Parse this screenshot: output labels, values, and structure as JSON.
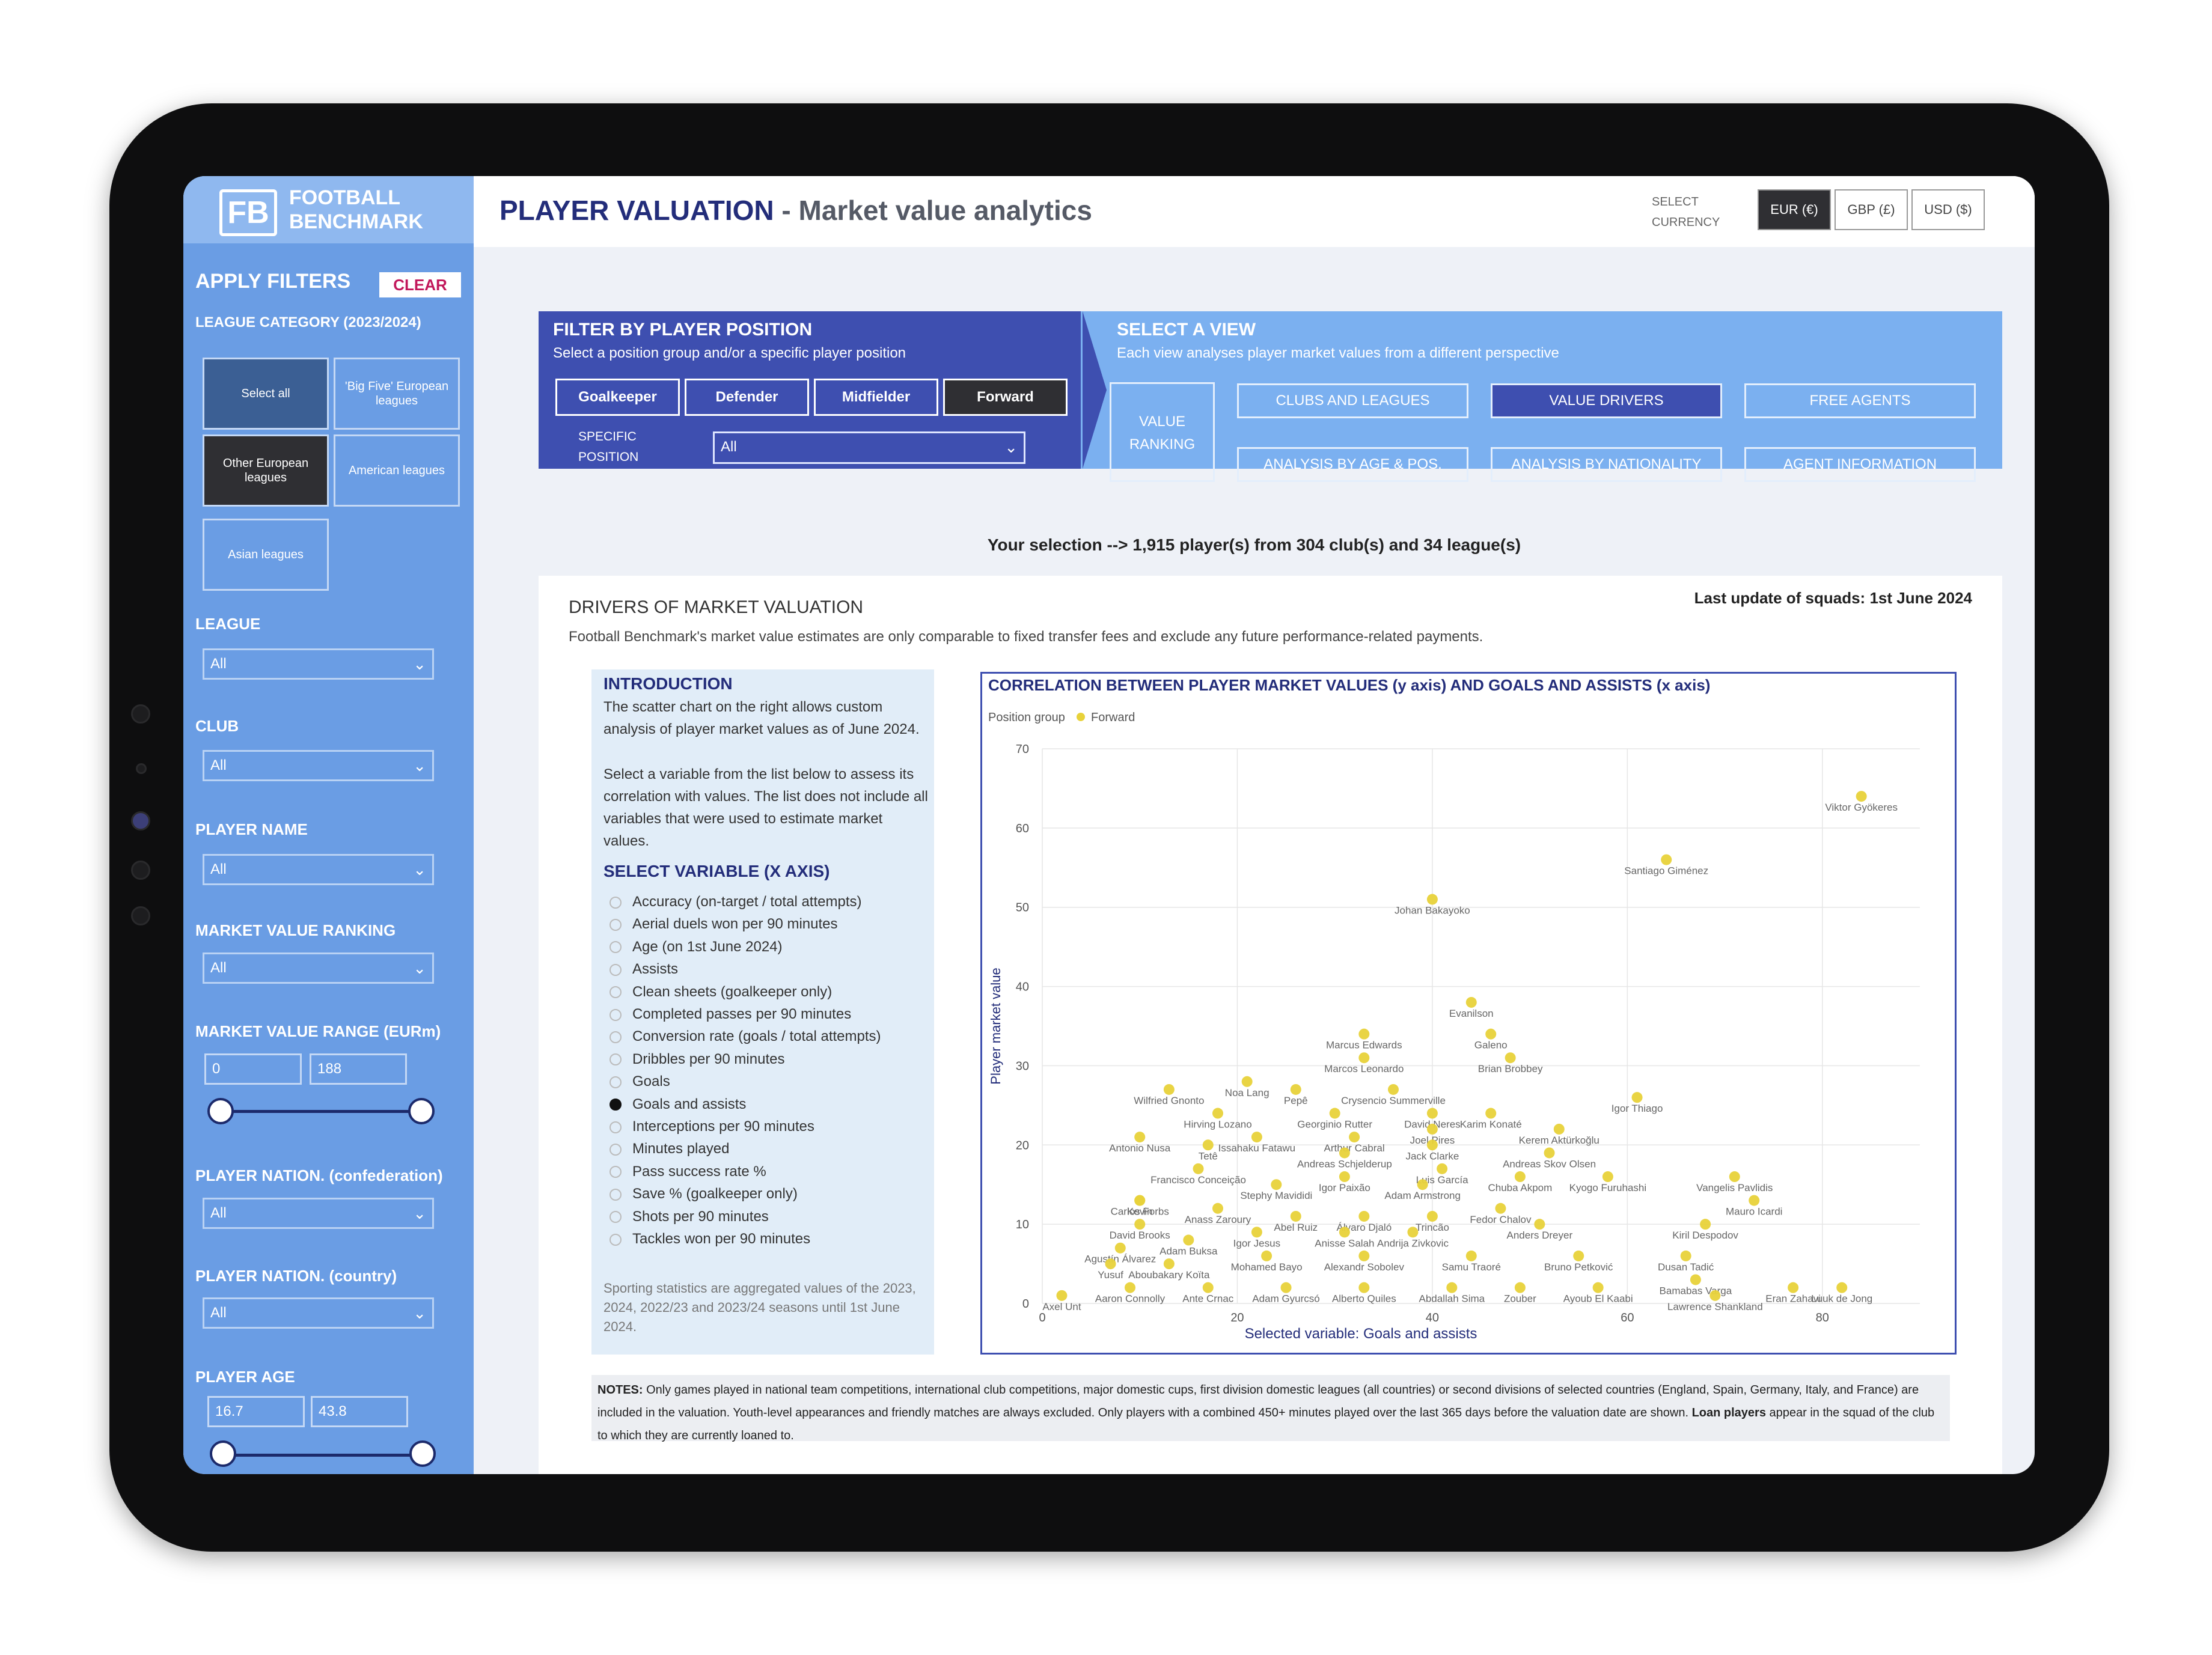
{
  "brand": {
    "line1": "FOOTBALL",
    "line2": "BENCHMARK",
    "mark": "FB"
  },
  "header": {
    "title_main": "PLAYER VALUATION",
    "title_sep": " - ",
    "title_sub": "Market value analytics",
    "currency_label_1": "SELECT",
    "currency_label_2": "CURRENCY",
    "currencies": [
      "EUR (€)",
      "GBP (£)",
      "USD ($)"
    ],
    "active_currency": "EUR (€)"
  },
  "sidebar": {
    "apply_filters": "APPLY FILTERS",
    "clear": "CLEAR",
    "league_category_label": "LEAGUE CATEGORY (2023/2024)",
    "league_categories": [
      "Select all",
      "'Big Five' European leagues",
      "Other European leagues",
      "American leagues",
      "Asian leagues"
    ],
    "league_label": "LEAGUE",
    "league_value": "All",
    "club_label": "CLUB",
    "club_value": "All",
    "player_name_label": "PLAYER NAME",
    "player_name_value": "All",
    "ranking_label": "MARKET VALUE RANKING",
    "ranking_value": "All",
    "range_label": "MARKET VALUE RANGE (EURm)",
    "range_min": "0",
    "range_max": "188",
    "confed_label": "PLAYER NATION. (confederation)",
    "confed_value": "All",
    "country_label": "PLAYER NATION. (country)",
    "country_value": "All",
    "age_label": "PLAYER AGE",
    "age_min": "16.7",
    "age_max": "43.8"
  },
  "filter_panel": {
    "title": "FILTER BY PLAYER POSITION",
    "subtitle": "Select a position group and/or a specific player position",
    "positions": [
      "Goalkeeper",
      "Defender",
      "Midfielder",
      "Forward"
    ],
    "active_position": "Forward",
    "specific_label_1": "SPECIFIC",
    "specific_label_2": "POSITION",
    "specific_value": "All"
  },
  "view_panel": {
    "title": "SELECT A VIEW",
    "subtitle": "Each view analyses player market values from a different perspective",
    "ranking_btn_1": "VALUE",
    "ranking_btn_2": "RANKING",
    "views": [
      "CLUBS AND LEAGUES",
      "VALUE DRIVERS",
      "FREE AGENTS",
      "ANALYSIS BY AGE & POS.",
      "ANALYSIS BY NATIONALITY",
      "AGENT INFORMATION"
    ],
    "active_view": "VALUE DRIVERS"
  },
  "selection_text": "Your selection --> 1,915 player(s) from 304 club(s) and 34 league(s)",
  "content": {
    "section_title": "DRIVERS OF MARKET VALUATION",
    "last_update": "Last update of squads: 1st June 2024",
    "disclaimer": "Football Benchmark's market value estimates are only comparable to fixed transfer fees and exclude any future performance-related payments.",
    "intro_title": "INTRODUCTION",
    "intro_p1": "The scatter chart on the right allows custom analysis of player market values as of June 2024.",
    "intro_p2": "Select a variable from the list below to assess its correlation with values. The list does not include all variables that were used to estimate market values.",
    "select_var_title": "SELECT VARIABLE (X AXIS)",
    "variables": [
      "Accuracy (on-target / total attempts)",
      "Aerial duels won per 90 minutes",
      "Age (on 1st June 2024)",
      "Assists",
      "Clean sheets (goalkeeper only)",
      "Completed passes per 90 minutes",
      "Conversion rate (goals / total attempts)",
      "Dribbles per 90 minutes",
      "Goals",
      "Goals and assists",
      "Interceptions per 90 minutes",
      "Minutes played",
      "Pass success rate %",
      "Save % (goalkeeper only)",
      "Shots per 90 minutes",
      "Tackles won per 90 minutes"
    ],
    "selected_variable": "Goals and assists",
    "footnote": "Sporting statistics are aggregated values of the 2023, 2024, 2022/23 and 2023/24 seasons until 1st June 2024.",
    "notes_label": "NOTES:",
    "notes_text": "Only games played in national team competitions, international club competitions, major domestic cups, first division domestic leagues (all countries) or second divisions of selected countries (England, Spain, Germany, Italy, and France) are included in the valuation. Youth-level appearances and friendly matches are always excluded. Only players with a combined 450+ minutes played over the last 365 days before the valuation date are shown.",
    "loan_label": "Loan players",
    "loan_text": "appear in the squad of the club to which they are currently loaned to."
  },
  "chart_data": {
    "type": "scatter",
    "title": "CORRELATION BETWEEN PLAYER MARKET VALUES (y axis) AND GOALS AND ASSISTS (x axis)",
    "legend_title": "Position group",
    "series_name": "Forward",
    "color": "#e8d23a",
    "xlabel": "Selected variable: Goals and assists",
    "ylabel": "Player market value",
    "xlim": [
      0,
      90
    ],
    "ylim": [
      0,
      70
    ],
    "xticks": [
      0,
      20,
      40,
      60,
      80
    ],
    "yticks": [
      0,
      10,
      20,
      30,
      40,
      50,
      60,
      70
    ],
    "labeled_points": [
      {
        "x": 84,
        "y": 64,
        "label": "Viktor Gyökeres"
      },
      {
        "x": 64,
        "y": 56,
        "label": "Santiago Giménez"
      },
      {
        "x": 40,
        "y": 51,
        "label": "Johan Bakayoko"
      },
      {
        "x": 44,
        "y": 38,
        "label": "Evanilson"
      },
      {
        "x": 46,
        "y": 34,
        "label": "Galeno"
      },
      {
        "x": 33,
        "y": 34,
        "label": "Marcus Edwards"
      },
      {
        "x": 33,
        "y": 31,
        "label": "Marcos Leonardo"
      },
      {
        "x": 48,
        "y": 31,
        "label": "Brian Brobbey"
      },
      {
        "x": 21,
        "y": 28,
        "label": "Noa Lang"
      },
      {
        "x": 13,
        "y": 27,
        "label": "Wilfried Gnonto"
      },
      {
        "x": 26,
        "y": 27,
        "label": "Pepê"
      },
      {
        "x": 36,
        "y": 27,
        "label": "Crysencio Summerville"
      },
      {
        "x": 61,
        "y": 26,
        "label": "Igor Thiago"
      },
      {
        "x": 18,
        "y": 24,
        "label": "Hirving Lozano"
      },
      {
        "x": 30,
        "y": 24,
        "label": "Georginio Rutter"
      },
      {
        "x": 40,
        "y": 24,
        "label": "David Neres"
      },
      {
        "x": 46,
        "y": 24,
        "label": "Karim Konaté"
      },
      {
        "x": 10,
        "y": 21,
        "label": "Antonio Nusa"
      },
      {
        "x": 22,
        "y": 21,
        "label": "Issahaku Fatawu"
      },
      {
        "x": 32,
        "y": 21,
        "label": "Arthur Cabral"
      },
      {
        "x": 40,
        "y": 22,
        "label": "Joel Pires"
      },
      {
        "x": 53,
        "y": 22,
        "label": "Kerem Aktürkoğlu"
      },
      {
        "x": 17,
        "y": 20,
        "label": "Tetê"
      },
      {
        "x": 40,
        "y": 20,
        "label": "Jack Clarke"
      },
      {
        "x": 52,
        "y": 19,
        "label": "Andreas Skov Olsen"
      },
      {
        "x": 31,
        "y": 19,
        "label": "Andreas Schjelderup"
      },
      {
        "x": 16,
        "y": 17,
        "label": "Francisco Conceição"
      },
      {
        "x": 41,
        "y": 17,
        "label": "Luis García"
      },
      {
        "x": 31,
        "y": 16,
        "label": "Igor Paixão"
      },
      {
        "x": 24,
        "y": 15,
        "label": "Stephy Mavididi"
      },
      {
        "x": 39,
        "y": 15,
        "label": "Adam Armstrong"
      },
      {
        "x": 49,
        "y": 16,
        "label": "Chuba Akpom"
      },
      {
        "x": 58,
        "y": 16,
        "label": "Kyogo Furuhashi"
      },
      {
        "x": 71,
        "y": 16,
        "label": "Vangelis Pavlidis"
      },
      {
        "x": 73,
        "y": 13,
        "label": "Mauro Icardi"
      },
      {
        "x": 10,
        "y": 13,
        "label": "Kevin"
      },
      {
        "x": 10,
        "y": 13,
        "label": "Carlos Forbs"
      },
      {
        "x": 18,
        "y": 12,
        "label": "Anass Zaroury"
      },
      {
        "x": 26,
        "y": 11,
        "label": "Abel Ruiz"
      },
      {
        "x": 33,
        "y": 11,
        "label": "Álvaro Djaló"
      },
      {
        "x": 40,
        "y": 11,
        "label": "Trincão"
      },
      {
        "x": 47,
        "y": 12,
        "label": "Fedor Chalov"
      },
      {
        "x": 10,
        "y": 10,
        "label": "David Brooks"
      },
      {
        "x": 22,
        "y": 9,
        "label": "Igor Jesus"
      },
      {
        "x": 38,
        "y": 9,
        "label": "Andrija Zivkovic"
      },
      {
        "x": 31,
        "y": 9,
        "label": "Anisse Salah"
      },
      {
        "x": 51,
        "y": 10,
        "label": "Anders Dreyer"
      },
      {
        "x": 68,
        "y": 10,
        "label": "Kiril Despodov"
      },
      {
        "x": 8,
        "y": 7,
        "label": "Agustín Álvarez"
      },
      {
        "x": 15,
        "y": 8,
        "label": "Adam Buksa"
      },
      {
        "x": 23,
        "y": 6,
        "label": "Mohamed Bayo"
      },
      {
        "x": 33,
        "y": 6,
        "label": "Alexandr Sobolev"
      },
      {
        "x": 44,
        "y": 6,
        "label": "Samu Traoré"
      },
      {
        "x": 55,
        "y": 6,
        "label": "Bruno Petković"
      },
      {
        "x": 66,
        "y": 6,
        "label": "Dusan Tadić"
      },
      {
        "x": 7,
        "y": 5,
        "label": "Yusuf"
      },
      {
        "x": 13,
        "y": 5,
        "label": "Aboubakary Koïta"
      },
      {
        "x": 67,
        "y": 3,
        "label": "Bamabas Varga"
      },
      {
        "x": 9,
        "y": 2,
        "label": "Aaron Connolly"
      },
      {
        "x": 17,
        "y": 2,
        "label": "Ante Crnac"
      },
      {
        "x": 25,
        "y": 2,
        "label": "Adam Gyurcsó"
      },
      {
        "x": 33,
        "y": 2,
        "label": "Alberto Quiles"
      },
      {
        "x": 42,
        "y": 2,
        "label": "Abdallah Sima"
      },
      {
        "x": 49,
        "y": 2,
        "label": "Zouber"
      },
      {
        "x": 57,
        "y": 2,
        "label": "Ayoub El Kaabi"
      },
      {
        "x": 69,
        "y": 1,
        "label": "Lawrence Shankland"
      },
      {
        "x": 77,
        "y": 2,
        "label": "Eran Zahavi"
      },
      {
        "x": 82,
        "y": 2,
        "label": "Luuk de Jong"
      },
      {
        "x": 2,
        "y": 1,
        "label": "Axel Unt"
      }
    ],
    "grid": true
  }
}
